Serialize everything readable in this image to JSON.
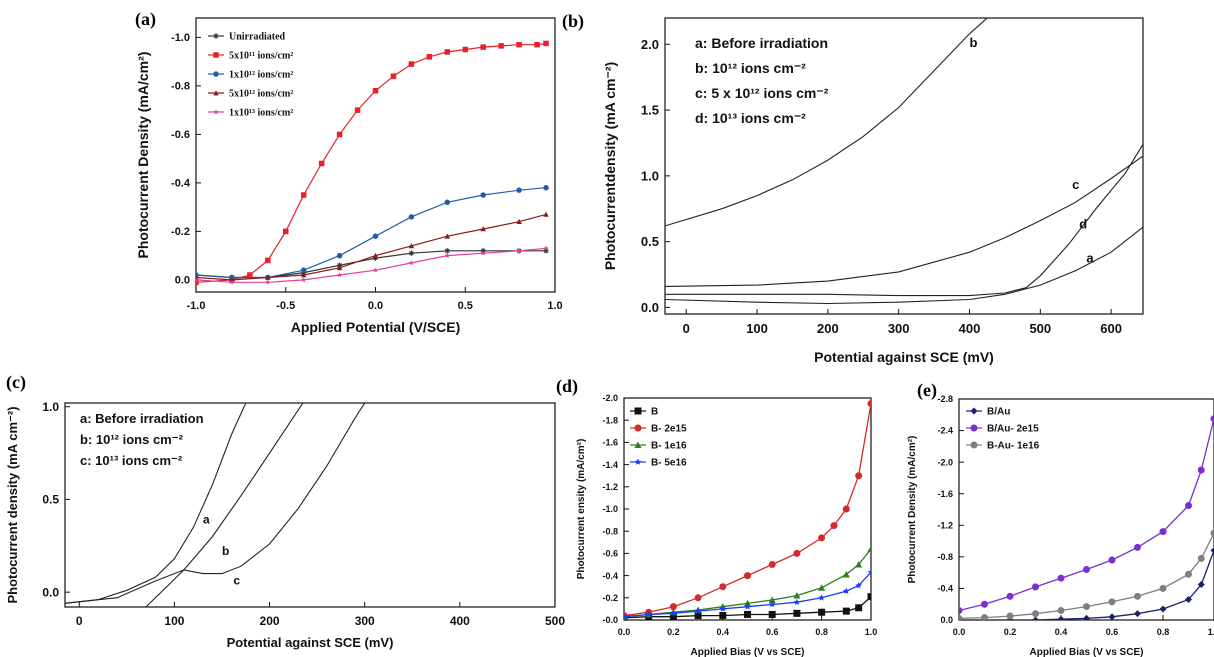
{
  "chart_data": [
    {
      "panel": "(a)",
      "type": "line",
      "xlabel": "Applied Potential (V/SCE)",
      "ylabel": "Photocurrent Density (mA/cm²)",
      "xlim": [
        -1.0,
        1.0
      ],
      "ylim": [
        0.05,
        -1.08
      ],
      "xticks": [
        {
          "v": -1.0,
          "t": "-1.0"
        },
        {
          "v": -0.5,
          "t": "-0.5"
        },
        {
          "v": 0.0,
          "t": "0.0"
        },
        {
          "v": 0.5,
          "t": "0.5"
        },
        {
          "v": 1.0,
          "t": "1.0"
        }
      ],
      "yticks": [
        {
          "v": 0.0,
          "t": "0.0"
        },
        {
          "v": -0.2,
          "t": "-0.2"
        },
        {
          "v": -0.4,
          "t": "-0.4"
        },
        {
          "v": -0.6,
          "t": "-0.6"
        },
        {
          "v": -0.8,
          "t": "-0.8"
        },
        {
          "v": -1.0,
          "t": "-1.0"
        }
      ],
      "legend_position": "top-left",
      "series": [
        {
          "name": "Unirradiated",
          "color": "#333333",
          "marker": "asterisk",
          "x": [
            -1.0,
            -0.8,
            -0.6,
            -0.4,
            -0.2,
            0.0,
            0.2,
            0.4,
            0.6,
            0.8,
            0.95
          ],
          "y": [
            -0.02,
            -0.01,
            -0.01,
            -0.03,
            -0.06,
            -0.09,
            -0.11,
            -0.12,
            -0.12,
            -0.12,
            -0.12
          ]
        },
        {
          "name": "5x10¹¹ ions/cm²",
          "color": "#e8202a",
          "marker": "square",
          "x": [
            -1.0,
            -0.8,
            -0.7,
            -0.6,
            -0.5,
            -0.4,
            -0.3,
            -0.2,
            -0.1,
            0.0,
            0.1,
            0.2,
            0.3,
            0.4,
            0.5,
            0.6,
            0.7,
            0.8,
            0.9,
            0.95
          ],
          "y": [
            0.01,
            0.0,
            -0.02,
            -0.08,
            -0.2,
            -0.35,
            -0.48,
            -0.6,
            -0.7,
            -0.78,
            -0.84,
            -0.89,
            -0.92,
            -0.94,
            -0.95,
            -0.96,
            -0.965,
            -0.97,
            -0.97,
            -0.975
          ]
        },
        {
          "name": "1x10¹² ions/cm²",
          "color": "#1f5fa8",
          "marker": "circle",
          "x": [
            -1.0,
            -0.8,
            -0.6,
            -0.4,
            -0.2,
            0.0,
            0.2,
            0.4,
            0.6,
            0.8,
            0.95
          ],
          "y": [
            -0.02,
            -0.01,
            -0.01,
            -0.04,
            -0.1,
            -0.18,
            -0.26,
            -0.32,
            -0.35,
            -0.37,
            -0.38
          ]
        },
        {
          "name": "5x10¹² ions/cm²",
          "color": "#8b1a1a",
          "marker": "triangle",
          "x": [
            -1.0,
            -0.8,
            -0.6,
            -0.4,
            -0.2,
            0.0,
            0.2,
            0.4,
            0.6,
            0.8,
            0.95
          ],
          "y": [
            -0.01,
            0.0,
            -0.01,
            -0.02,
            -0.05,
            -0.1,
            -0.14,
            -0.18,
            -0.21,
            -0.24,
            -0.27
          ]
        },
        {
          "name": "1x10¹³ ions/cm²",
          "color": "#e040a0",
          "marker": "star",
          "x": [
            -1.0,
            -0.8,
            -0.6,
            -0.4,
            -0.2,
            0.0,
            0.2,
            0.4,
            0.6,
            0.8,
            0.95
          ],
          "y": [
            0.0,
            0.01,
            0.01,
            0.0,
            -0.02,
            -0.04,
            -0.07,
            -0.1,
            -0.11,
            -0.12,
            -0.13
          ]
        }
      ]
    },
    {
      "panel": "(b)",
      "type": "line",
      "xlabel": "Potential against SCE (mV)",
      "ylabel": "Photocurrentdensity (mA cm⁻²)",
      "xlim": [
        -30,
        645
      ],
      "ylim": [
        -0.05,
        2.2
      ],
      "xticks": [
        {
          "v": 0,
          "t": "0"
        },
        {
          "v": 100,
          "t": "100"
        },
        {
          "v": 200,
          "t": "200"
        },
        {
          "v": 300,
          "t": "300"
        },
        {
          "v": 400,
          "t": "400"
        },
        {
          "v": 500,
          "t": "500"
        },
        {
          "v": 600,
          "t": "600"
        }
      ],
      "yticks": [
        {
          "v": 0.0,
          "t": "0.0"
        },
        {
          "v": 0.5,
          "t": "0.5"
        },
        {
          "v": 1.0,
          "t": "1.0"
        },
        {
          "v": 1.5,
          "t": "1.5"
        },
        {
          "v": 2.0,
          "t": "2.0"
        }
      ],
      "legend_lines": [
        "a: Before irradiation",
        "b: 10¹² ions cm⁻²",
        "c: 5 x 10¹² ions cm⁻²",
        "d: 10¹³ ions cm⁻²"
      ],
      "series": [
        {
          "name": "a",
          "color": "#222222",
          "x": [
            -30,
            100,
            200,
            300,
            400,
            450,
            500,
            550,
            600,
            645
          ],
          "y": [
            0.06,
            0.04,
            0.03,
            0.04,
            0.06,
            0.1,
            0.17,
            0.28,
            0.42,
            0.61
          ]
        },
        {
          "name": "b",
          "color": "#222222",
          "x": [
            -30,
            50,
            100,
            150,
            200,
            250,
            300,
            350,
            400,
            425
          ],
          "y": [
            0.62,
            0.75,
            0.85,
            0.97,
            1.12,
            1.3,
            1.52,
            1.8,
            2.08,
            2.2
          ]
        },
        {
          "name": "c",
          "color": "#222222",
          "x": [
            -30,
            100,
            200,
            300,
            400,
            450,
            500,
            550,
            600,
            645
          ],
          "y": [
            0.16,
            0.17,
            0.2,
            0.27,
            0.42,
            0.53,
            0.66,
            0.8,
            0.98,
            1.15
          ]
        },
        {
          "name": "d",
          "color": "#222222",
          "x": [
            -30,
            100,
            200,
            300,
            400,
            450,
            480,
            500,
            540,
            580,
            620,
            645
          ],
          "y": [
            0.1,
            0.1,
            0.1,
            0.09,
            0.09,
            0.11,
            0.15,
            0.24,
            0.48,
            0.76,
            1.02,
            1.24
          ]
        }
      ],
      "annotations": [
        {
          "t": "a",
          "x": 565,
          "y": 0.34
        },
        {
          "t": "b",
          "x": 400,
          "y": 1.98
        },
        {
          "t": "c",
          "x": 545,
          "y": 0.9
        },
        {
          "t": "d",
          "x": 555,
          "y": 0.6
        }
      ]
    },
    {
      "panel": "(c)",
      "type": "line",
      "xlabel": "Potential against SCE (mV)",
      "ylabel": "Photocurrent density (mA cm⁻²)",
      "xlim": [
        -15,
        500
      ],
      "ylim": [
        -0.08,
        1.02
      ],
      "xticks": [
        {
          "v": 0,
          "t": "0"
        },
        {
          "v": 100,
          "t": "100"
        },
        {
          "v": 200,
          "t": "200"
        },
        {
          "v": 300,
          "t": "300"
        },
        {
          "v": 400,
          "t": "400"
        },
        {
          "v": 500,
          "t": "500"
        }
      ],
      "yticks": [
        {
          "v": 0.0,
          "t": "0.0"
        },
        {
          "v": 0.5,
          "t": "0.5"
        },
        {
          "v": 1.0,
          "t": "1.0"
        }
      ],
      "legend_lines": [
        "a: Before irradiation",
        "b: 10¹² ions cm⁻²",
        "c: 10¹³ ions cm⁻²"
      ],
      "series": [
        {
          "name": "a",
          "color": "#222222",
          "x": [
            -15,
            20,
            50,
            80,
            100,
            120,
            140,
            160,
            175
          ],
          "y": [
            -0.06,
            -0.04,
            0.01,
            0.08,
            0.18,
            0.35,
            0.58,
            0.85,
            1.02
          ]
        },
        {
          "name": "b",
          "color": "#222222",
          "x": [
            70,
            90,
            110,
            140,
            170,
            200,
            235
          ],
          "y": [
            -0.08,
            0.02,
            0.12,
            0.3,
            0.52,
            0.75,
            1.02
          ]
        },
        {
          "name": "c",
          "color": "#222222",
          "x": [
            -15,
            40,
            80,
            110,
            130,
            150,
            170,
            200,
            230,
            260,
            290,
            300
          ],
          "y": [
            -0.06,
            -0.03,
            0.06,
            0.12,
            0.1,
            0.1,
            0.14,
            0.26,
            0.45,
            0.68,
            0.94,
            1.02
          ]
        }
      ],
      "annotations": [
        {
          "t": "a",
          "x": 130,
          "y": 0.37
        },
        {
          "t": "b",
          "x": 150,
          "y": 0.2
        },
        {
          "t": "c",
          "x": 162,
          "y": 0.04
        }
      ]
    },
    {
      "panel": "(d)",
      "type": "line",
      "xlabel": "Applied Bias (V vs SCE)",
      "ylabel": "Photocurrent    ensity (mA/cm²)",
      "xlim": [
        0.0,
        1.0
      ],
      "ylim": [
        0.0,
        -2.0
      ],
      "xticks": [
        {
          "v": 0.0,
          "t": "0.0"
        },
        {
          "v": 0.2,
          "t": "0.2"
        },
        {
          "v": 0.4,
          "t": "0.4"
        },
        {
          "v": 0.6,
          "t": "0.6"
        },
        {
          "v": 0.8,
          "t": "0.8"
        },
        {
          "v": 1.0,
          "t": "1.0"
        }
      ],
      "yticks": [
        {
          "v": -0.0,
          "t": "-0.0"
        },
        {
          "v": -0.2,
          "t": "-0.2"
        },
        {
          "v": -0.4,
          "t": "-0.4"
        },
        {
          "v": -0.6,
          "t": "-0.6"
        },
        {
          "v": -0.8,
          "t": "-0.8"
        },
        {
          "v": -1.0,
          "t": "-1.0"
        },
        {
          "v": -1.2,
          "t": "-1.2"
        },
        {
          "v": -1.4,
          "t": "-1.4"
        },
        {
          "v": -1.6,
          "t": "-1.6"
        },
        {
          "v": -1.8,
          "t": "-1.8"
        },
        {
          "v": -2.0,
          "t": "-2.0"
        }
      ],
      "legend_position": "top-left",
      "series": [
        {
          "name": "B",
          "color": "#111111",
          "marker": "square",
          "x": [
            0.0,
            0.1,
            0.2,
            0.3,
            0.4,
            0.5,
            0.6,
            0.7,
            0.8,
            0.9,
            0.95,
            1.0
          ],
          "y": [
            -0.02,
            -0.03,
            -0.03,
            -0.04,
            -0.04,
            -0.05,
            -0.05,
            -0.06,
            -0.07,
            -0.08,
            -0.11,
            -0.21
          ]
        },
        {
          "name": "B- 2e15",
          "color": "#d42a2a",
          "marker": "circle",
          "x": [
            0.0,
            0.1,
            0.2,
            0.3,
            0.4,
            0.5,
            0.6,
            0.7,
            0.8,
            0.85,
            0.9,
            0.95,
            1.0
          ],
          "y": [
            -0.04,
            -0.07,
            -0.12,
            -0.2,
            -0.3,
            -0.4,
            -0.5,
            -0.6,
            -0.74,
            -0.85,
            -1.0,
            -1.3,
            -1.95
          ]
        },
        {
          "name": "B- 1e16",
          "color": "#2e7d1f",
          "marker": "triangle",
          "x": [
            0.0,
            0.1,
            0.2,
            0.3,
            0.4,
            0.5,
            0.6,
            0.7,
            0.8,
            0.9,
            0.95,
            1.0
          ],
          "y": [
            -0.03,
            -0.05,
            -0.07,
            -0.09,
            -0.12,
            -0.15,
            -0.18,
            -0.22,
            -0.29,
            -0.41,
            -0.5,
            -0.64
          ]
        },
        {
          "name": "B- 5e16",
          "color": "#1a3cff",
          "marker": "star",
          "x": [
            0.0,
            0.1,
            0.2,
            0.3,
            0.4,
            0.5,
            0.6,
            0.7,
            0.8,
            0.9,
            0.95,
            1.0
          ],
          "y": [
            -0.03,
            -0.05,
            -0.06,
            -0.08,
            -0.1,
            -0.12,
            -0.14,
            -0.16,
            -0.2,
            -0.26,
            -0.31,
            -0.43
          ]
        }
      ]
    },
    {
      "panel": "(e)",
      "type": "line",
      "xlabel": "Applied Bias (V vs SCE)",
      "ylabel": "Photocurrent Density (mA/cm²)",
      "xlim": [
        0.0,
        1.0
      ],
      "ylim": [
        0.0,
        -2.8
      ],
      "xticks": [
        {
          "v": 0.0,
          "t": "0.0"
        },
        {
          "v": 0.2,
          "t": "0.2"
        },
        {
          "v": 0.4,
          "t": "0.4"
        },
        {
          "v": 0.6,
          "t": "0.6"
        },
        {
          "v": 0.8,
          "t": "0.8"
        },
        {
          "v": 1.0,
          "t": "1.0"
        }
      ],
      "yticks": [
        {
          "v": 0.0,
          "t": "0.0"
        },
        {
          "v": -0.4,
          "t": "-0.4"
        },
        {
          "v": -0.8,
          "t": "-0.8"
        },
        {
          "v": -1.2,
          "t": "-1.2"
        },
        {
          "v": -1.6,
          "t": "-1.6"
        },
        {
          "v": -2.0,
          "t": "-2.0"
        },
        {
          "v": -2.4,
          "t": "-2.4"
        },
        {
          "v": -2.8,
          "t": "-2.8"
        }
      ],
      "legend_position": "top-left",
      "series": [
        {
          "name": "B/Au",
          "color": "#1a1f6e",
          "marker": "diamond",
          "x": [
            0.0,
            0.1,
            0.2,
            0.3,
            0.4,
            0.5,
            0.6,
            0.7,
            0.8,
            0.9,
            0.95,
            1.0
          ],
          "y": [
            0.0,
            0.0,
            0.0,
            0.0,
            -0.01,
            -0.02,
            -0.04,
            -0.08,
            -0.14,
            -0.26,
            -0.45,
            -0.88
          ]
        },
        {
          "name": "B/Au- 2e15",
          "color": "#7a2fd0",
          "marker": "circle",
          "x": [
            0.0,
            0.1,
            0.2,
            0.3,
            0.4,
            0.5,
            0.6,
            0.7,
            0.8,
            0.9,
            0.95,
            1.0
          ],
          "y": [
            -0.12,
            -0.2,
            -0.3,
            -0.42,
            -0.53,
            -0.64,
            -0.76,
            -0.92,
            -1.12,
            -1.45,
            -1.9,
            -2.55
          ]
        },
        {
          "name": "B-Au- 1e16",
          "color": "#7f7f7f",
          "marker": "circle",
          "x": [
            0.0,
            0.1,
            0.2,
            0.3,
            0.4,
            0.5,
            0.6,
            0.7,
            0.8,
            0.9,
            0.95,
            1.0
          ],
          "y": [
            -0.02,
            -0.03,
            -0.05,
            -0.08,
            -0.12,
            -0.17,
            -0.23,
            -0.3,
            -0.4,
            -0.58,
            -0.78,
            -1.1
          ]
        }
      ]
    }
  ]
}
